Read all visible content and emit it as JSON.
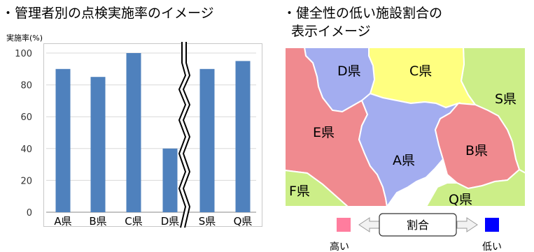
{
  "left_title": "・管理者別の点検実施率のイメージ",
  "right_title_line1": "・健全性の低い施設割合の",
  "right_title_line2": "表示イメージ",
  "chart_data": {
    "type": "bar",
    "ylabel": "実施率(%)",
    "categories": [
      "A県",
      "B県",
      "C県",
      "D県",
      "S県",
      "Q県"
    ],
    "values": [
      90,
      85,
      100,
      40,
      90,
      95
    ],
    "ylim": [
      0,
      100
    ],
    "yticks": [
      0,
      20,
      40,
      60,
      80,
      100
    ],
    "grid": true,
    "bar_color": "#4f81bd",
    "axis_break_after_index": 3
  },
  "map": {
    "regions": [
      {
        "label": "D県",
        "color": "#a3adf0"
      },
      {
        "label": "C県",
        "color": "#ffff80"
      },
      {
        "label": "S県",
        "color": "#ccee88"
      },
      {
        "label": "E県",
        "color": "#f08a8f"
      },
      {
        "label": "A県",
        "color": "#a3adf0"
      },
      {
        "label": "B県",
        "color": "#f08a8f"
      },
      {
        "label": "F県",
        "color": "#ccee88"
      },
      {
        "label": "Q県",
        "color": "#ccee88"
      }
    ]
  },
  "legend": {
    "center_label": "割合",
    "high_label": "高い",
    "low_label": "低い",
    "high_color": "#ff7d9e",
    "low_color": "#0000ff"
  }
}
